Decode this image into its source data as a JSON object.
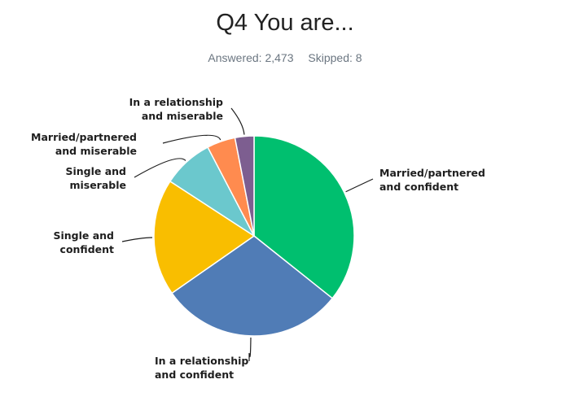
{
  "title": "Q4 You are...",
  "stats": {
    "answered": "Answered: 2,473",
    "skipped": "Skipped: 8"
  },
  "chart_data": {
    "type": "pie",
    "title": "Q4 You are...",
    "start": "12 o'clock",
    "direction": "clockwise",
    "slices": [
      {
        "label": [
          "Married/partnered",
          "and confident"
        ],
        "value": 35.0,
        "color": "#00bf6f"
      },
      {
        "label": [
          "In a relationship",
          "and confident"
        ],
        "value": 29.0,
        "color": "#507cb6"
      },
      {
        "label": [
          "Single and",
          "confident"
        ],
        "value": 18.5,
        "color": "#f9be00"
      },
      {
        "label": [
          "Single and",
          "miserable"
        ],
        "value": 8.0,
        "color": "#6bc8cd"
      },
      {
        "label": [
          "Married/partnered",
          "and miserable"
        ],
        "value": 4.5,
        "color": "#ff8b4f"
      },
      {
        "label": [
          "In a relationship",
          "and miserable"
        ],
        "value": 3.0,
        "color": "#7d5e90"
      }
    ]
  }
}
